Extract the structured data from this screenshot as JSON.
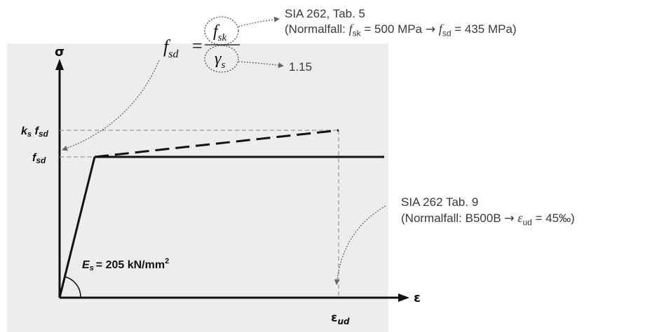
{
  "diagram": {
    "axis_y_label": "σ",
    "axis_x_label": "ε",
    "label_ks_fsd": "k",
    "label_ks_sub": "s",
    "label_f": "f",
    "label_fsd_sub": "sd",
    "label_eud_sub": "ud",
    "modulus_label": "E",
    "modulus_sub": "s",
    "modulus_value": "= 205 kN/mm",
    "modulus_exp": "2"
  },
  "formula": {
    "lhs_f": "f",
    "lhs_sub": "sd",
    "equals": "=",
    "num_f": "f",
    "num_sub": "sk",
    "den_gamma": "γ",
    "den_sub": "s"
  },
  "annotations": {
    "fsk_source": "SIA 262, Tab. 5",
    "fsk_note_prefix": "(Normalfall:",
    "fsk_note_f1": "f",
    "fsk_note_sub1": "sk",
    "fsk_note_mid": "= 500 MPa",
    "fsk_note_arrow": "→",
    "fsk_note_f2": "f",
    "fsk_note_sub2": "sd",
    "fsk_note_end": "= 435 MPa)",
    "gamma_value": "1.15",
    "eud_source": "SIA 262 Tab. 9",
    "eud_note_prefix": "(Normalfall: B500B",
    "eud_note_arrow": "→",
    "eud_note_eps": "ε",
    "eud_note_sub": "ud",
    "eud_note_end": "= 45‰)"
  }
}
